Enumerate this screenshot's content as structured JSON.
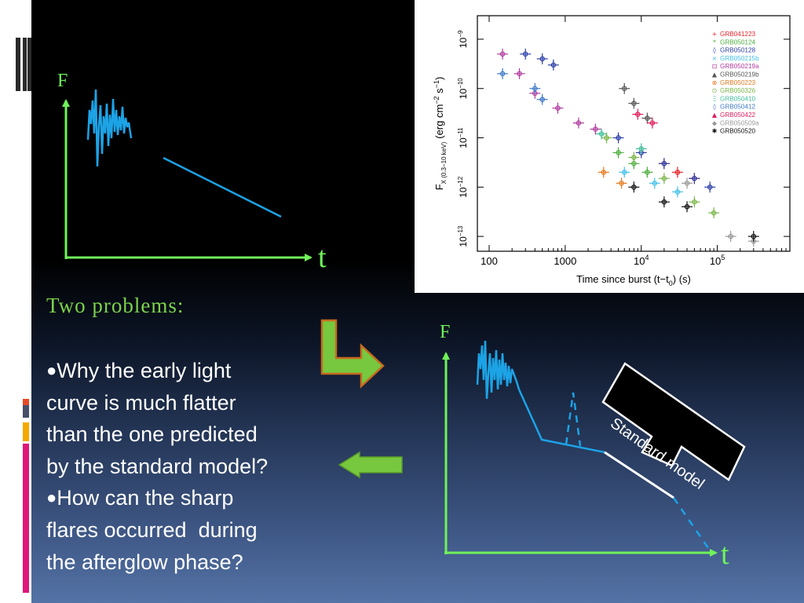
{
  "sketch_top": {
    "f_label": "F",
    "t_label": "t"
  },
  "sketch_bottom": {
    "f_label": "F",
    "t_label": "t",
    "callout": "Standard model"
  },
  "problems": {
    "title": "Two problems:",
    "bullet": "●",
    "lines1": [
      "Why the early light",
      "curve is much flatter",
      "than the one predicted",
      "by the standard model?"
    ],
    "lines2": [
      "How can the sharp",
      "flares occurred  during",
      "the afterglow phase?"
    ]
  },
  "chart_data": {
    "type": "scatter",
    "xlabel": "Time since burst (t−t",
    "xlabel_sub": "0",
    "xlabel_end": ") (s)",
    "ylabel": "F",
    "ylabel_sub": "X (0.3−10 keV)",
    "ylabel_unit": "(erg cm",
    "ylabel_exp1": "−2",
    "ylabel_mid": " s",
    "ylabel_exp2": "−1",
    "ylabel_end": ")",
    "xscale": "log",
    "yscale": "log",
    "xlim": [
      70,
      900000
    ],
    "ylim": [
      5e-14,
      3e-09
    ],
    "xticks": [
      {
        "v": 100,
        "label": "100"
      },
      {
        "v": 1000,
        "label": "1000"
      },
      {
        "v": 10000,
        "base": "10",
        "exp": "4"
      },
      {
        "v": 100000,
        "base": "10",
        "exp": "5"
      }
    ],
    "yticks": [
      {
        "v": 1e-09,
        "base": "10",
        "exp": "−9"
      },
      {
        "v": 1e-10,
        "base": "10",
        "exp": "−10"
      },
      {
        "v": 1e-11,
        "base": "10",
        "exp": "−11"
      },
      {
        "v": 1e-12,
        "base": "10",
        "exp": "−12"
      },
      {
        "v": 1e-13,
        "base": "10",
        "exp": "−13"
      }
    ],
    "legend_position": "top-right",
    "series": [
      {
        "name": "GRB041223",
        "color": "#e8242a",
        "symbol": "+",
        "points": [
          [
            20000,
            3e-12
          ],
          [
            30000,
            2e-12
          ],
          [
            50000,
            1.5e-12
          ]
        ]
      },
      {
        "name": "GRB050124",
        "color": "#4caf3c",
        "symbol": "*",
        "points": [
          [
            5000,
            5e-12
          ],
          [
            8000,
            3e-12
          ],
          [
            12000,
            2e-12
          ]
        ]
      },
      {
        "name": "GRB050128",
        "color": "#2c3fa8",
        "symbol": "◊",
        "points": [
          [
            300,
            5e-10
          ],
          [
            500,
            4e-10
          ],
          [
            700,
            3e-10
          ],
          [
            5000,
            1e-11
          ],
          [
            10000,
            5e-12
          ],
          [
            20000,
            3e-12
          ],
          [
            50000,
            1.5e-12
          ],
          [
            80000,
            1e-12
          ]
        ]
      },
      {
        "name": "GRB050215b",
        "color": "#45c0e8",
        "symbol": "×",
        "points": [
          [
            6000,
            2e-12
          ],
          [
            15000,
            1.2e-12
          ],
          [
            30000,
            8e-13
          ]
        ]
      },
      {
        "name": "GRB050219a",
        "color": "#b03a9e",
        "symbol": "⊡",
        "points": [
          [
            150,
            5e-10
          ],
          [
            250,
            2e-10
          ],
          [
            400,
            8e-11
          ],
          [
            800,
            4e-11
          ],
          [
            1500,
            2e-11
          ],
          [
            2500,
            1.5e-11
          ]
        ]
      },
      {
        "name": "GRB050219b",
        "color": "#555555",
        "symbol": "▲",
        "points": [
          [
            6000,
            1e-10
          ],
          [
            8000,
            5e-11
          ],
          [
            12000,
            2.5e-11
          ]
        ]
      },
      {
        "name": "GRB050223",
        "color": "#e57a1e",
        "symbol": "⊗",
        "points": [
          [
            3200,
            2e-12
          ],
          [
            5500,
            1.2e-12
          ]
        ]
      },
      {
        "name": "GRB050326",
        "color": "#7ab648",
        "symbol": "⊙",
        "points": [
          [
            3500,
            1e-11
          ],
          [
            8000,
            4e-12
          ],
          [
            20000,
            1.5e-12
          ],
          [
            50000,
            5e-13
          ],
          [
            90000,
            3e-13
          ]
        ]
      },
      {
        "name": "GRB050410",
        "color": "#3fbf9a",
        "symbol": "Ξ",
        "points": [
          [
            3000,
            1.2e-11
          ],
          [
            10000,
            6e-12
          ]
        ]
      },
      {
        "name": "GRB050412",
        "color": "#3c78c8",
        "symbol": "◊",
        "points": [
          [
            150,
            2e-10
          ],
          [
            400,
            1e-10
          ],
          [
            500,
            6e-11
          ]
        ]
      },
      {
        "name": "GRB050422",
        "color": "#e01c5c",
        "symbol": "▲",
        "points": [
          [
            9000,
            3e-11
          ],
          [
            14000,
            2e-11
          ]
        ]
      },
      {
        "name": "GRB050509a",
        "color": "#999999",
        "symbol": "◆",
        "points": [
          [
            40000,
            1.2e-12
          ],
          [
            150000,
            1e-13
          ],
          [
            300000,
            8e-14
          ]
        ]
      },
      {
        "name": "GRB050520",
        "color": "#111111",
        "symbol": "✱",
        "points": [
          [
            8000,
            1e-12
          ],
          [
            20000,
            5e-13
          ],
          [
            40000,
            4e-13
          ],
          [
            300000,
            1e-13
          ]
        ]
      }
    ]
  }
}
